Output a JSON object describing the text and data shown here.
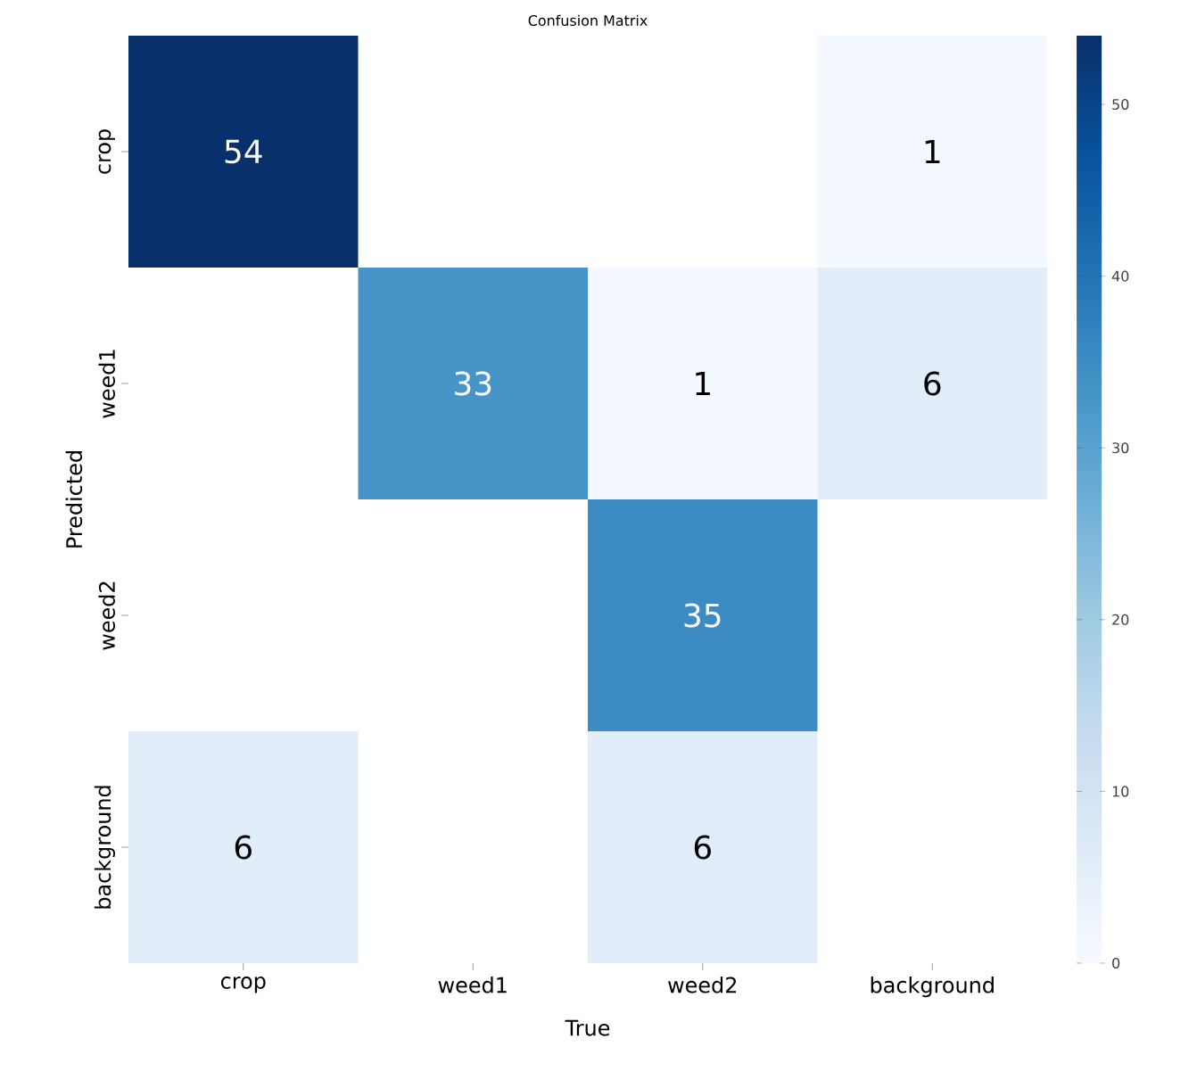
{
  "chart_data": {
    "type": "heatmap",
    "title": "Confusion Matrix",
    "xlabel": "True",
    "ylabel": "Predicted",
    "categories": [
      "crop",
      "weed1",
      "weed2",
      "background"
    ],
    "y_categories": [
      "crop",
      "weed1",
      "weed2",
      "background"
    ],
    "cells": [
      [
        54,
        null,
        null,
        1
      ],
      [
        null,
        33,
        1,
        6
      ],
      [
        null,
        null,
        35,
        null
      ],
      [
        6,
        null,
        6,
        null
      ]
    ],
    "clim": [
      0,
      54
    ],
    "cticks": [
      0,
      10,
      20,
      30,
      40,
      50
    ],
    "data_labels": true
  }
}
